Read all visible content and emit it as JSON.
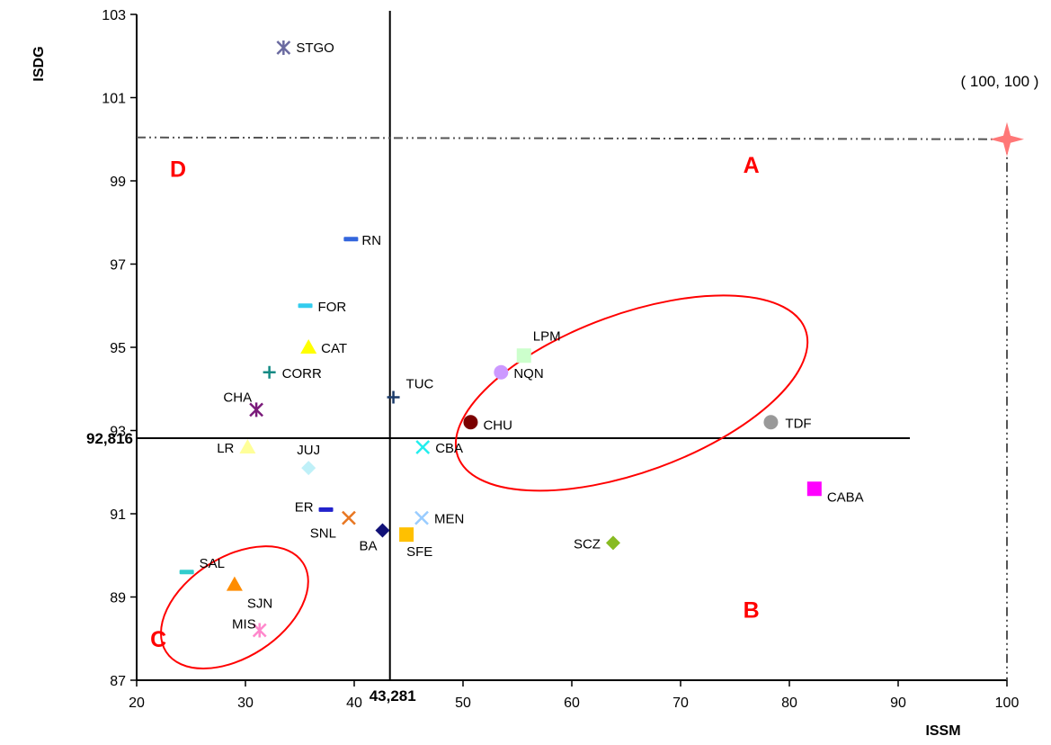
{
  "chart_data": {
    "type": "scatter",
    "xlabel": "ISSM",
    "ylabel": "ISDG",
    "xlim": [
      20,
      100
    ],
    "ylim": [
      87,
      103
    ],
    "xticks": [
      20,
      30,
      40,
      50,
      60,
      70,
      80,
      90,
      100
    ],
    "yticks": [
      87,
      89,
      91,
      93,
      95,
      97,
      99,
      101,
      103
    ],
    "grid": false,
    "legend": "none",
    "points": [
      {
        "label": "STGO",
        "x": 33.5,
        "y": 102.2,
        "marker": "asterisk",
        "color": "#6a6aa0"
      },
      {
        "label": "RN",
        "x": 39.7,
        "y": 97.6,
        "marker": "dash",
        "color": "#3366dd"
      },
      {
        "label": "FOR",
        "x": 35.5,
        "y": 96.0,
        "marker": "dash",
        "color": "#33ccee"
      },
      {
        "label": "CAT",
        "x": 35.8,
        "y": 95.0,
        "marker": "triangle",
        "color": "#ffff00"
      },
      {
        "label": "CORR",
        "x": 32.2,
        "y": 94.4,
        "marker": "plus",
        "color": "#138a84"
      },
      {
        "label": "CHA",
        "x": 31.0,
        "y": 93.5,
        "marker": "asterisk",
        "color": "#7a1a7a"
      },
      {
        "label": "LR",
        "x": 30.2,
        "y": 92.6,
        "marker": "triangle",
        "color": "#ffff99"
      },
      {
        "label": "JUJ",
        "x": 35.8,
        "y": 92.1,
        "marker": "diamond",
        "color": "#bff0f8"
      },
      {
        "label": "TUC",
        "x": 43.6,
        "y": 93.8,
        "marker": "plus",
        "color": "#1a3a6a"
      },
      {
        "label": "CBA",
        "x": 46.3,
        "y": 92.6,
        "marker": "cross",
        "color": "#22eeee"
      },
      {
        "label": "CHU",
        "x": 50.7,
        "y": 93.2,
        "marker": "circle",
        "color": "#7b0000"
      },
      {
        "label": "LPM",
        "x": 55.6,
        "y": 94.8,
        "marker": "square",
        "color": "#ccffcc"
      },
      {
        "label": "NQN",
        "x": 53.5,
        "y": 94.4,
        "marker": "circle",
        "color": "#cc99ff"
      },
      {
        "label": "TDF",
        "x": 78.3,
        "y": 93.2,
        "marker": "circle",
        "color": "#999999"
      },
      {
        "label": "CABA",
        "x": 82.3,
        "y": 91.6,
        "marker": "square",
        "color": "#ff00ff"
      },
      {
        "label": "ER",
        "x": 37.4,
        "y": 91.1,
        "marker": "dash",
        "color": "#2222cc"
      },
      {
        "label": "SNL",
        "x": 39.5,
        "y": 90.9,
        "marker": "cross",
        "color": "#e87722"
      },
      {
        "label": "BA",
        "x": 42.6,
        "y": 90.6,
        "marker": "diamond",
        "color": "#111177"
      },
      {
        "label": "MEN",
        "x": 46.2,
        "y": 90.9,
        "marker": "cross",
        "color": "#99ccff"
      },
      {
        "label": "SFE",
        "x": 44.8,
        "y": 90.5,
        "marker": "square",
        "color": "#ffc000"
      },
      {
        "label": "SCZ",
        "x": 63.8,
        "y": 90.3,
        "marker": "diamond",
        "color": "#88bb22"
      },
      {
        "label": "SAL",
        "x": 24.6,
        "y": 89.6,
        "marker": "dash",
        "color": "#33cccc"
      },
      {
        "label": "SJN",
        "x": 29.0,
        "y": 89.3,
        "marker": "triangle",
        "color": "#ff8c00"
      },
      {
        "label": "MIS",
        "x": 31.3,
        "y": 88.2,
        "marker": "asterisk",
        "color": "#ff88cc"
      }
    ],
    "ideal_point": {
      "label": "( 100, 100 )",
      "x": 100,
      "y": 100,
      "color": "#ff7777"
    },
    "thresholds": {
      "x": 43.281,
      "x_label": "43,281",
      "y": 92.816,
      "y_label": "92,816"
    },
    "quadrants": [
      {
        "label": "A",
        "x": 76.5,
        "y": 99.2
      },
      {
        "label": "B",
        "x": 76.5,
        "y": 88.5
      },
      {
        "label": "C",
        "x": 22.0,
        "y": 87.8
      },
      {
        "label": "D",
        "x": 23.8,
        "y": 99.1
      }
    ],
    "quadrant_color": "#ff0000",
    "clusters": [
      {
        "cx": 65.5,
        "cy": 93.9,
        "rx": 17.0,
        "ry": 1.9,
        "angle": -20,
        "color": "#ff0000"
      },
      {
        "cx": 29.0,
        "cy": 88.75,
        "rx": 7.5,
        "ry": 1.2,
        "angle": -33,
        "color": "#ff0000"
      }
    ]
  }
}
